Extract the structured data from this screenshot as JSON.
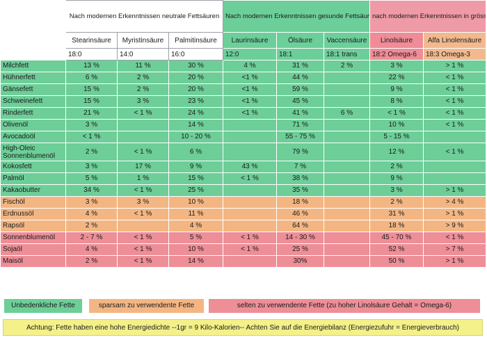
{
  "groups": {
    "neutral": "Nach modernen Erkenntnissen neutrale Fettsäuren",
    "healthy": "Nach modernen Erkenntnissen gesunde Fettsäuren",
    "unhealthy": "nach modernen Erkenntnissen in grösseren Mengen genossen ungesunde Fettsäuren"
  },
  "columns": [
    {
      "name": "Stearinsäure",
      "code": "18:0"
    },
    {
      "name": "Myristinsäure",
      "code": "14:0"
    },
    {
      "name": "Palmitinsäure",
      "code": "16:0"
    },
    {
      "name": "Laurinsäure",
      "code": "12:0"
    },
    {
      "name": "Ölsäure",
      "code": "18:1"
    },
    {
      "name": "Vaccensäure",
      "code": "18:1 trans"
    },
    {
      "name": "Linolsäure",
      "code": "18:2 Omega-6"
    },
    {
      "name": "Alfa Linolensäure",
      "code": "18:3 Omega-3"
    }
  ],
  "rows": [
    {
      "name": "Milchfett",
      "v": [
        "13 %",
        "11 %",
        "30 %",
        "4 %",
        "31 %",
        "2 %",
        "3 %",
        "> 1 %"
      ]
    },
    {
      "name": "Hühnerfett",
      "v": [
        "6 %",
        "2 %",
        "20 %",
        "<1 %",
        "44 %",
        "",
        "22 %",
        "< 1 %"
      ]
    },
    {
      "name": "Gänsefett",
      "v": [
        "15 %",
        "2 %",
        "20 %",
        "<1 %",
        "59 %",
        "",
        "9 %",
        "< 1 %"
      ]
    },
    {
      "name": "Schweinefett",
      "v": [
        "15 %",
        "3 %",
        "23 %",
        "<1 %",
        "45 %",
        "",
        "8 %",
        "< 1 %"
      ]
    },
    {
      "name": "Rinderfett",
      "v": [
        "21 %",
        "< 1 %",
        "24 %",
        "<1 %",
        "41 %",
        "6 %",
        "< 1 %",
        "< 1 %"
      ]
    },
    {
      "name": "Olivenöl",
      "v": [
        "3 %",
        "",
        "14 %",
        "",
        "71 %",
        "",
        "10 %",
        "< 1 %"
      ]
    },
    {
      "name": "Avocadoöl",
      "v": [
        "< 1 %",
        "",
        "10 - 20 %",
        "",
        "55 - 75 %",
        "",
        "5 - 15 %",
        ""
      ]
    },
    {
      "name": "High-Oleic Sonnenblumenöl",
      "v": [
        "2 %",
        "< 1 %",
        "6 %",
        "",
        "79 %",
        "",
        "12 %",
        "< 1 %"
      ]
    },
    {
      "name": "Kokosfett",
      "v": [
        "3 %",
        "17 %",
        "9 %",
        "43 %",
        "7 %",
        "",
        "2 %",
        ""
      ]
    },
    {
      "name": "Palmöl",
      "v": [
        "5 %",
        "1 %",
        "15 %",
        "< 1 %",
        "38 %",
        "",
        "9 %",
        ""
      ]
    },
    {
      "name": "Kakaobutter",
      "v": [
        "34 %",
        "< 1 %",
        "25 %",
        "",
        "35 %",
        "",
        "3 %",
        "> 1 %"
      ]
    },
    {
      "name": "Fischöl",
      "v": [
        "3 %",
        "3 %",
        "10 %",
        "",
        "18 %",
        "",
        "2 %",
        "> 4 %"
      ]
    },
    {
      "name": "Erdnussöl",
      "v": [
        "4 %",
        "< 1 %",
        "11 %",
        "",
        "46 %",
        "",
        "31 %",
        "> 1 %"
      ]
    },
    {
      "name": "Rapsöl",
      "v": [
        "2 %",
        "",
        "4 %",
        "",
        "64 %",
        "",
        "18 %",
        "> 9 %"
      ]
    },
    {
      "name": "Sonnenblumenöl",
      "v": [
        "2 - 7 %",
        "< 1 %",
        "5 %",
        "< 1 %",
        "14 - 30 %",
        "",
        "45 - 70 %",
        "< 1 %"
      ]
    },
    {
      "name": "Sojaöl",
      "v": [
        "4 %",
        "< 1 %",
        "10 %",
        "< 1 %",
        "25 %",
        "",
        "52 %",
        "> 7 %"
      ]
    },
    {
      "name": "Maisöl",
      "v": [
        "2 %",
        "< 1 %",
        "14 %",
        "",
        "30%",
        "",
        "50 %",
        "> 1 %"
      ]
    }
  ],
  "legend": {
    "green": "Unbedenkliche Fette",
    "orange": "sparsam zu verwendente Fette",
    "red": "selten zu verwendente Fette  (zu hoher Linolsäure Gehalt = Omega-6)"
  },
  "note": "Achtung: Fette haben eine hohe Energiedichte --1gr = 9 Kilo-Kalorien-- Achten Sie auf die Energiebilanz (Energiezufuhr = Energieverbrauch)"
}
